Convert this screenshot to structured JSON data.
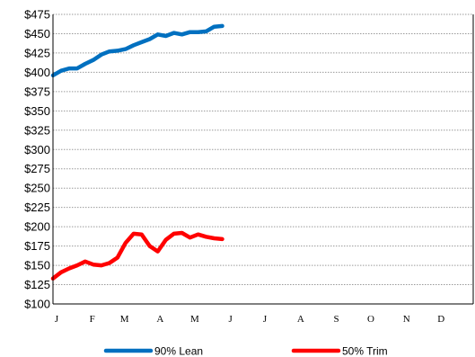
{
  "chart_data": {
    "type": "line",
    "title": "",
    "xlabel": "",
    "ylabel": "",
    "ylim": [
      100,
      475
    ],
    "y_ticks": [
      "$475",
      "$450",
      "$425",
      "$400",
      "$375",
      "$350",
      "$325",
      "$300",
      "$275",
      "$250",
      "$225",
      "$200",
      "$175",
      "$150",
      "$125",
      "$100"
    ],
    "y_tick_values": [
      475,
      450,
      425,
      400,
      375,
      350,
      325,
      300,
      275,
      250,
      225,
      200,
      175,
      150,
      125,
      100
    ],
    "month_labels": [
      "J",
      "F",
      "M",
      "A",
      "M",
      "J",
      "J",
      "A",
      "S",
      "O",
      "N",
      "D"
    ],
    "month_ticks": [
      0,
      31,
      59,
      90,
      120,
      151,
      181,
      212,
      243,
      273,
      304,
      334
    ],
    "xlim": [
      0,
      365
    ],
    "grid": true,
    "legend_position": "bottom",
    "series": [
      {
        "name": "90% Lean",
        "color": "#0070C0",
        "x": [
          0,
          7,
          14,
          21,
          28,
          35,
          42,
          49,
          56,
          63,
          70,
          77,
          84,
          91,
          98,
          105,
          112,
          119,
          126,
          133,
          140,
          147
        ],
        "values": [
          396,
          402,
          405,
          405,
          411,
          416,
          423,
          427,
          428,
          430,
          435,
          439,
          443,
          449,
          447,
          451,
          449,
          452,
          452,
          453,
          459,
          460
        ]
      },
      {
        "name": "50% Trim",
        "color": "#FF0000",
        "x": [
          0,
          7,
          14,
          21,
          28,
          35,
          42,
          49,
          56,
          63,
          70,
          77,
          84,
          91,
          98,
          105,
          112,
          119,
          126,
          133,
          140,
          147
        ],
        "values": [
          133,
          141,
          146,
          150,
          155,
          151,
          150,
          153,
          160,
          179,
          191,
          190,
          175,
          168,
          183,
          191,
          192,
          186,
          190,
          187,
          185,
          184
        ]
      }
    ]
  }
}
